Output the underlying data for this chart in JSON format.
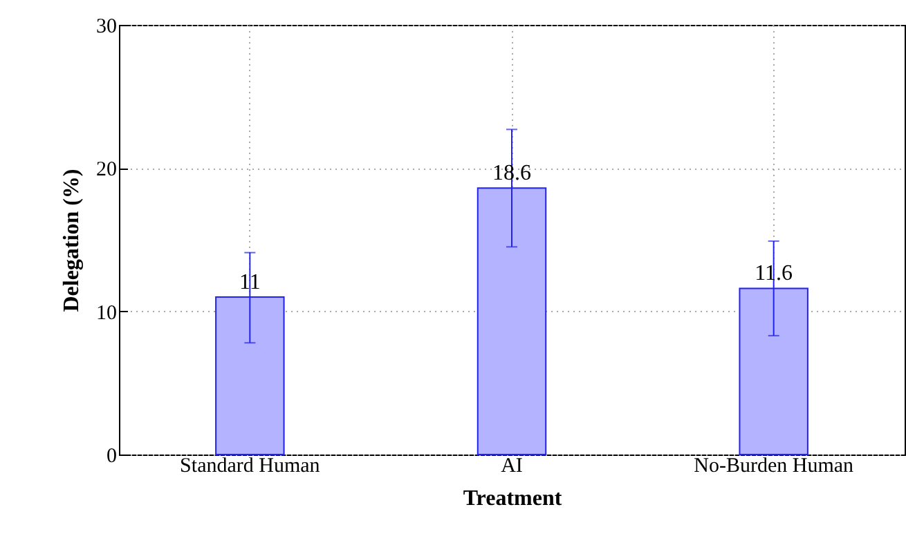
{
  "chart_data": {
    "type": "bar",
    "xlabel": "Treatment",
    "ylabel": "Delegation (%)",
    "categories": [
      "Standard Human",
      "AI",
      "No-Burden Human"
    ],
    "series": [
      {
        "color": "#b3b3ff",
        "values": [
          11,
          18.6,
          11.6
        ],
        "errors": [
          [
            7.8,
            14.1
          ],
          [
            14.5,
            22.7
          ],
          [
            8.3,
            14.9
          ]
        ]
      }
    ],
    "ylim": [
      0,
      30
    ],
    "yticks": [
      0,
      10,
      20,
      30
    ],
    "grid": true,
    "data_labels": true
  }
}
